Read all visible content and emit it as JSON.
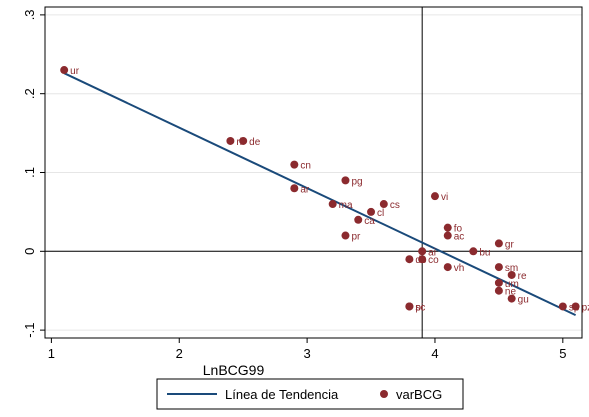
{
  "chart_data": {
    "type": "scatter",
    "xlabel": "LnBCG99",
    "ylabel": "",
    "xlim": [
      0.95,
      5.15
    ],
    "ylim": [
      -0.11,
      0.31
    ],
    "x_ticks": [
      1,
      2,
      3,
      4,
      5
    ],
    "x_tick_labels": [
      "1",
      "2",
      "3",
      "4",
      "5"
    ],
    "y_ticks": [
      -0.1,
      0,
      0.1,
      0.2,
      0.3
    ],
    "y_tick_labels": [
      "-.1",
      "0",
      ".1",
      ".2",
      ".3"
    ],
    "grid": "horizontal",
    "reference_lines": {
      "x": 3.9,
      "y": 0
    },
    "legend": {
      "placement": "bottom",
      "entries": [
        {
          "label": "Línea de Tendencia",
          "kind": "line"
        },
        {
          "label": "varBCG",
          "kind": "marker"
        }
      ]
    },
    "colors": {
      "trend": "#1a4a7a",
      "marker": "#8b2a2e",
      "label": "#8b2a2e",
      "axis": "#000000",
      "grid": "#e6e6e6"
    },
    "trend_line": {
      "name": "Línea de Tendencia",
      "x": [
        1.1,
        5.1
      ],
      "y": [
        0.226,
        -0.081
      ]
    },
    "series": [
      {
        "name": "varBCG",
        "points": [
          {
            "label": "ur",
            "x": 1.1,
            "y": 0.23
          },
          {
            "label": "ri",
            "x": 2.4,
            "y": 0.14
          },
          {
            "label": "de",
            "x": 2.5,
            "y": 0.14
          },
          {
            "label": "cn",
            "x": 2.9,
            "y": 0.11
          },
          {
            "label": "ar",
            "x": 2.9,
            "y": 0.08
          },
          {
            "label": "pg",
            "x": 3.3,
            "y": 0.09
          },
          {
            "label": "ma",
            "x": 3.2,
            "y": 0.06
          },
          {
            "label": "cs",
            "x": 3.6,
            "y": 0.06
          },
          {
            "label": "cl",
            "x": 3.5,
            "y": 0.05
          },
          {
            "label": "ca",
            "x": 3.4,
            "y": 0.04
          },
          {
            "label": "pr",
            "x": 3.3,
            "y": 0.02
          },
          {
            "label": "vi",
            "x": 4.0,
            "y": 0.07
          },
          {
            "label": "fo",
            "x": 4.1,
            "y": 0.03
          },
          {
            "label": "ac",
            "x": 4.1,
            "y": 0.02
          },
          {
            "label": "gr",
            "x": 4.5,
            "y": 0.01
          },
          {
            "label": "bu",
            "x": 4.3,
            "y": 0.0
          },
          {
            "label": "ai",
            "x": 3.9,
            "y": 0.0
          },
          {
            "label": "do",
            "x": 3.8,
            "y": -0.01
          },
          {
            "label": "co",
            "x": 3.9,
            "y": -0.01
          },
          {
            "label": "vh",
            "x": 4.1,
            "y": -0.02
          },
          {
            "label": "sm",
            "x": 4.5,
            "y": -0.02
          },
          {
            "label": "re",
            "x": 4.6,
            "y": -0.03
          },
          {
            "label": "um",
            "x": 4.5,
            "y": -0.04
          },
          {
            "label": "ne",
            "x": 4.5,
            "y": -0.05
          },
          {
            "label": "gu",
            "x": 4.6,
            "y": -0.06
          },
          {
            "label": "pi",
            "x": 3.8,
            "y": -0.07
          },
          {
            "label": "sc",
            "x": 3.8,
            "y": -0.07
          },
          {
            "label": "sp",
            "x": 5.0,
            "y": -0.07
          },
          {
            "label": "pz",
            "x": 5.1,
            "y": -0.07
          }
        ]
      }
    ]
  }
}
